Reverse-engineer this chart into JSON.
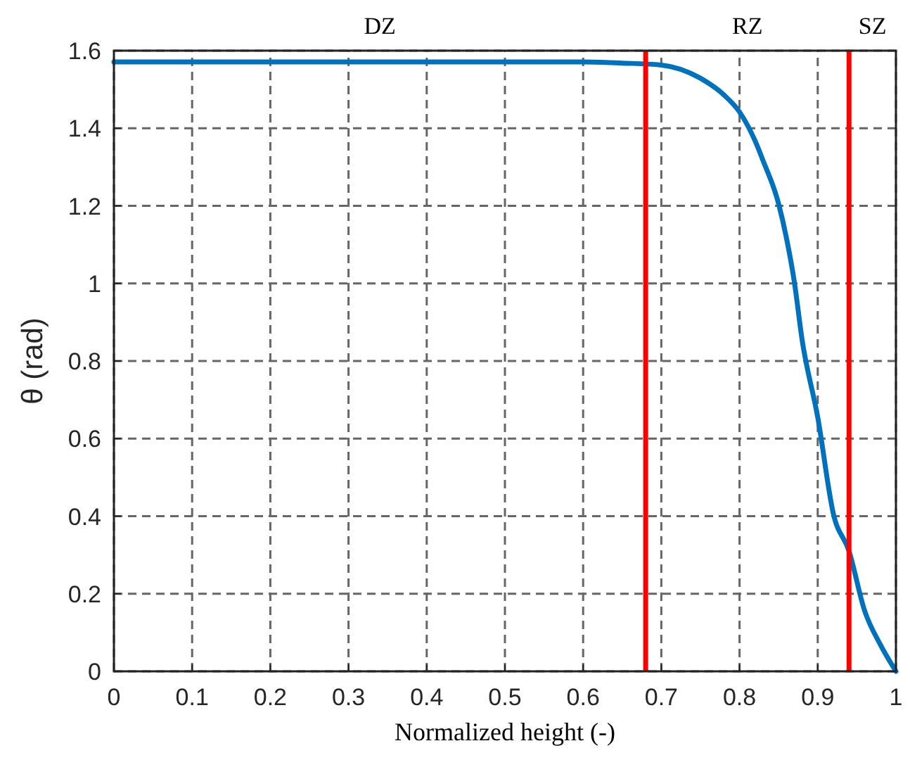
{
  "chart_data": {
    "type": "line",
    "xlabel": "Normalized height (-)",
    "ylabel": "θ (rad)",
    "xlim": [
      0,
      1
    ],
    "ylim": [
      0,
      1.6
    ],
    "xticks": [
      0,
      0.1,
      0.2,
      0.3,
      0.4,
      0.5,
      0.6,
      0.7,
      0.8,
      0.9,
      1
    ],
    "yticks": [
      0,
      0.2,
      0.4,
      0.6,
      0.8,
      1,
      1.2,
      1.4,
      1.6
    ],
    "grid": true,
    "line_style": "solid",
    "marker": "none",
    "series": [
      {
        "color": "#0072bd",
        "x": [
          0,
          0.1,
          0.2,
          0.3,
          0.4,
          0.5,
          0.6,
          0.65,
          0.7,
          0.75,
          0.78,
          0.8,
          0.82,
          0.83,
          0.85,
          0.86,
          0.87,
          0.88,
          0.9,
          0.92,
          0.94,
          0.96,
          0.98,
          1
        ],
        "values": [
          1.571,
          1.571,
          1.571,
          1.571,
          1.571,
          1.571,
          1.571,
          1.568,
          1.563,
          1.529,
          1.486,
          1.442,
          1.367,
          1.317,
          1.205,
          1.117,
          1.005,
          0.855,
          0.655,
          0.406,
          0.31,
          0.156,
          0.069,
          0
        ]
      }
    ],
    "ref_lines": [
      {
        "axis": "x",
        "value": 0.68,
        "color": "#ff0000"
      },
      {
        "axis": "x",
        "value": 0.94,
        "color": "#ff0000"
      }
    ],
    "annotations": [
      "DZ",
      "RZ",
      "SZ"
    ]
  }
}
